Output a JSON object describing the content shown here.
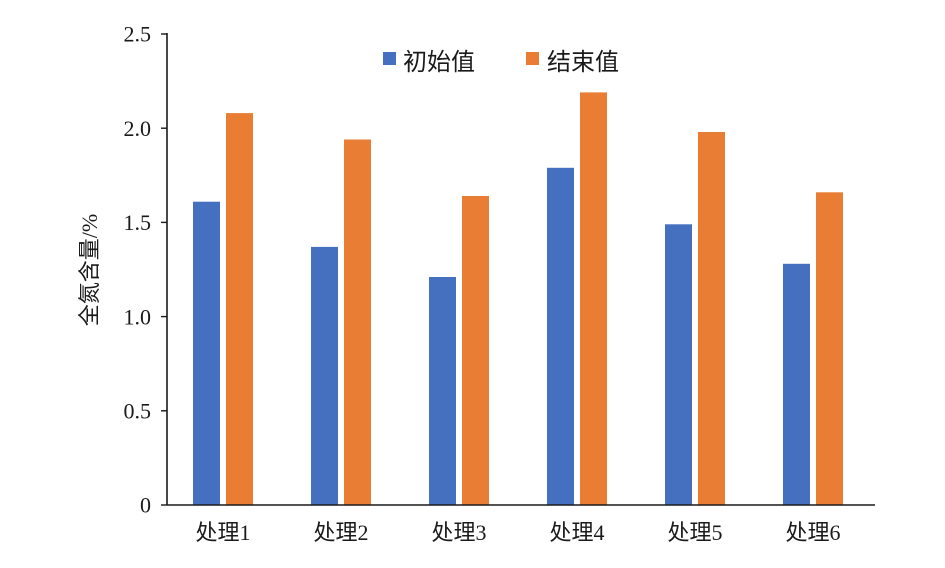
{
  "chart_data": {
    "type": "bar",
    "categories": [
      "处理1",
      "处理2",
      "处理3",
      "处理4",
      "处理5",
      "处理6"
    ],
    "series": [
      {
        "name": "初始值",
        "color": "#4470BF",
        "values": [
          1.61,
          1.37,
          1.21,
          1.79,
          1.49,
          1.28
        ]
      },
      {
        "name": "结束值",
        "color": "#E97D33",
        "values": [
          2.08,
          1.94,
          1.64,
          2.19,
          1.98,
          1.66
        ]
      }
    ],
    "ylabel": "全氮含量/%",
    "ylim": [
      0,
      2.5
    ],
    "yticks": [
      0,
      0.5,
      1.0,
      1.5,
      2.0,
      2.5
    ],
    "ytick_labels": [
      "0",
      "0.5",
      "1.0",
      "1.5",
      "2.0",
      "2.5"
    ],
    "grid": false,
    "legend": "top-center"
  }
}
